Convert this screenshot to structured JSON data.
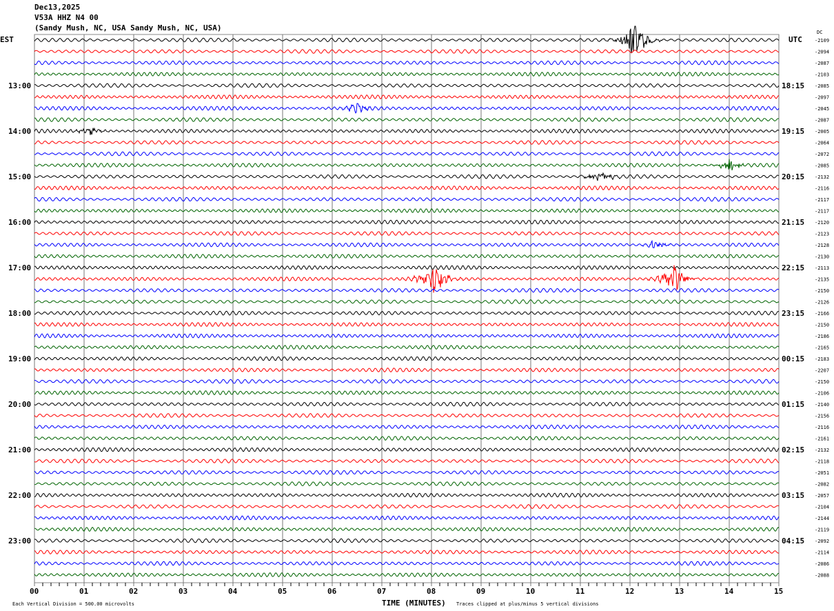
{
  "header": {
    "date": "Dec13,2025",
    "station": "V53A HHZ N4 00",
    "location": "(Sandy Mush, NC, USA Sandy Mush, NC, USA)"
  },
  "chart_data": {
    "type": "line",
    "title": "Helicorder V53A HHZ N4 00",
    "xlabel": "TIME (MINUTES)",
    "xlim": [
      0,
      15
    ],
    "x_ticks": [
      "00",
      "01",
      "02",
      "03",
      "04",
      "05",
      "06",
      "07",
      "08",
      "09",
      "10",
      "11",
      "12",
      "13",
      "14",
      "15"
    ],
    "left_tz": "EST",
    "right_tz": "UTC",
    "dc_header": "DC",
    "left_hour_labels": [
      "13:00",
      "14:00",
      "15:00",
      "16:00",
      "17:00",
      "18:00",
      "19:00",
      "20:00",
      "21:00",
      "22:00",
      "23:00"
    ],
    "right_hour_labels": [
      "18:15",
      "19:15",
      "20:15",
      "21:15",
      "22:15",
      "23:15",
      "00:15",
      "01:15",
      "02:15",
      "03:15",
      "04:15"
    ],
    "trace_colors": [
      "#000000",
      "#ff0000",
      "#0000ff",
      "#006400"
    ],
    "dc_offsets": [
      "-2109",
      "-2094",
      "-2087",
      "-2103",
      "-2085",
      "-2097",
      "-2045",
      "-2087",
      "-2005",
      "-2064",
      "-2072",
      "-2085",
      "-2132",
      "-2116",
      "-2117",
      "-2117",
      "-2120",
      "-2123",
      "-2128",
      "-2130",
      "-2113",
      "-2135",
      "-2150",
      "-2126",
      "-2166",
      "-2150",
      "-2186",
      "-2165",
      "-2183",
      "-2207",
      "-2150",
      "-2106",
      "-2140",
      "-2156",
      "-2116",
      "-2161",
      "-2132",
      "-2118",
      "-2051",
      "-2082",
      "-2057",
      "-2104",
      "-2144",
      "-2119",
      "-2092",
      "-2114",
      "-2086",
      "-2088"
    ],
    "events": [
      {
        "trace": 0,
        "minute": 12.1,
        "amplitude": 5
      },
      {
        "trace": 21,
        "minute": 8.05,
        "amplitude": 4
      },
      {
        "trace": 21,
        "minute": 12.9,
        "amplitude": 4
      },
      {
        "trace": 12,
        "minute": 11.4,
        "amplitude": 1.5
      },
      {
        "trace": 11,
        "minute": 14.0,
        "amplitude": 1.5
      },
      {
        "trace": 8,
        "minute": 1.1,
        "amplitude": 1
      },
      {
        "trace": 6,
        "minute": 6.5,
        "amplitude": 1
      },
      {
        "trace": 18,
        "minute": 12.5,
        "amplitude": 1
      }
    ],
    "scale_note": "Each Vertical Division =  500.00 microvolts",
    "clip_note": "Traces clipped at plus/minus 5 vertical divisions"
  }
}
